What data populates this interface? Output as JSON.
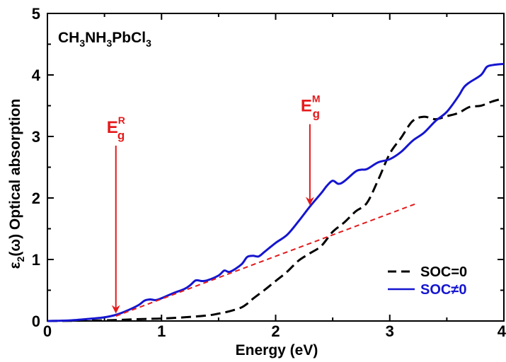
{
  "chart_data": {
    "type": "line",
    "compound": {
      "base": "CH",
      "sub1": "3",
      "mid1": "NH",
      "sub2": "3",
      "mid2": "PbCl",
      "sub3": "3"
    },
    "xlabel": "Energy (eV)",
    "ylabel": {
      "eps": "ε",
      "sub": "2",
      "rest": "(ω) Optical absorption"
    },
    "xlim": [
      0,
      4
    ],
    "ylim": [
      0,
      5
    ],
    "x_ticks": [
      "0",
      "1",
      "2",
      "3",
      "4"
    ],
    "y_ticks": [
      "0",
      "1",
      "2",
      "3",
      "4",
      "5"
    ],
    "grid": false,
    "legend_position": "bottom-right",
    "series": [
      {
        "name": "SOC=0",
        "color": "#000000",
        "style": "dashed",
        "x": [
          0,
          0.5,
          0.8,
          1.0,
          1.2,
          1.4,
          1.5,
          1.6,
          1.7,
          1.75,
          1.8,
          1.9,
          2.0,
          2.1,
          2.2,
          2.3,
          2.4,
          2.5,
          2.6,
          2.7,
          2.8,
          2.9,
          3.0,
          3.1,
          3.2,
          3.3,
          3.4,
          3.5,
          3.6,
          3.7,
          3.8,
          3.9,
          4.0
        ],
        "y": [
          0,
          0.01,
          0.03,
          0.04,
          0.06,
          0.09,
          0.12,
          0.16,
          0.22,
          0.28,
          0.36,
          0.5,
          0.65,
          0.8,
          0.98,
          1.1,
          1.22,
          1.45,
          1.6,
          1.78,
          1.92,
          2.3,
          2.72,
          2.98,
          3.25,
          3.32,
          3.28,
          3.33,
          3.38,
          3.48,
          3.5,
          3.57,
          3.62
        ]
      },
      {
        "name": "SOC≠0",
        "color": "#1515d0",
        "style": "solid",
        "x": [
          0,
          0.2,
          0.4,
          0.5,
          0.6,
          0.7,
          0.8,
          0.85,
          0.9,
          0.95,
          1.0,
          1.1,
          1.2,
          1.25,
          1.3,
          1.35,
          1.4,
          1.5,
          1.55,
          1.6,
          1.7,
          1.75,
          1.8,
          1.85,
          1.9,
          2.0,
          2.1,
          2.2,
          2.3,
          2.4,
          2.45,
          2.5,
          2.55,
          2.6,
          2.7,
          2.75,
          2.8,
          2.9,
          3.0,
          3.1,
          3.2,
          3.3,
          3.4,
          3.5,
          3.6,
          3.65,
          3.7,
          3.8,
          3.85,
          3.9,
          4.0
        ],
        "y": [
          0,
          0.01,
          0.04,
          0.06,
          0.1,
          0.17,
          0.26,
          0.33,
          0.35,
          0.34,
          0.37,
          0.45,
          0.52,
          0.58,
          0.66,
          0.65,
          0.66,
          0.74,
          0.82,
          0.8,
          0.92,
          1.04,
          1.06,
          1.05,
          1.12,
          1.27,
          1.4,
          1.62,
          1.86,
          2.08,
          2.2,
          2.28,
          2.23,
          2.27,
          2.43,
          2.46,
          2.47,
          2.58,
          2.63,
          2.75,
          2.93,
          3.06,
          3.25,
          3.4,
          3.65,
          3.8,
          3.88,
          4.0,
          4.13,
          4.16,
          4.18
        ]
      },
      {
        "name": "",
        "color": "#e41a1c",
        "style": "dashed-fit",
        "x": [
          0.6,
          3.22
        ],
        "y": [
          0.08,
          1.9
        ]
      }
    ],
    "annotations": [
      {
        "base": "E",
        "sub": "g",
        "sup": "R",
        "x": 0.6,
        "y_from": 2.85,
        "y_to": 0.12,
        "color": "#e41a1c"
      },
      {
        "base": "E",
        "sub": "g",
        "sup": "M",
        "x": 2.3,
        "y_from": 3.2,
        "y_to": 1.88,
        "color": "#e41a1c"
      }
    ]
  }
}
